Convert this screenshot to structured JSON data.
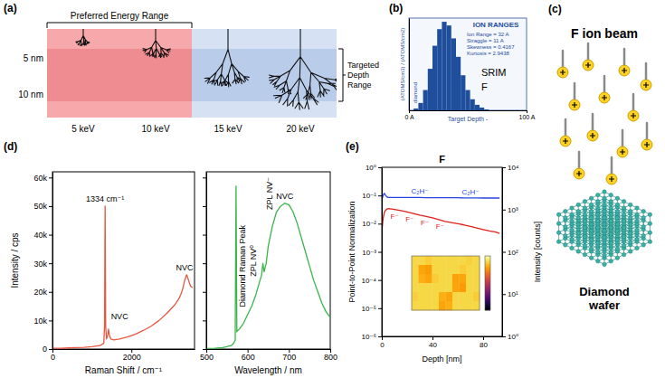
{
  "panel_labels": [
    "(a)",
    "(b)",
    "(c)",
    "(d)",
    "(e)"
  ],
  "diagram_a": {
    "range_label": "Preferred Energy Range",
    "depth_label": "Targeted Depth Range",
    "depths": [
      "5 nm",
      "10 nm"
    ],
    "energies": [
      "5 keV",
      "10 keV",
      "15 keV",
      "20 keV"
    ]
  },
  "diagram_c": {
    "beam_label": "F ion beam",
    "wafer_label": "Diamond wafer"
  },
  "chart_data": [
    {
      "type": "histogram",
      "title": "ION RANGES",
      "annotations": [
        "Ion Range = 32 A",
        "Straggle = 11 A",
        "Skewness = 0.4167",
        "Kurtosis = 2.9438"
      ],
      "labels": [
        "SRIM",
        "F"
      ],
      "target_label": "diamond",
      "xlabel": "Target Depth -",
      "ylabel": "(ATOMS/cm3) / (ATOMS/cm2)",
      "bins": [
        0,
        4,
        8,
        12,
        16,
        20,
        24,
        28,
        32,
        36,
        40,
        44,
        48,
        52,
        56,
        60,
        64,
        68,
        72
      ],
      "counts": [
        0,
        2,
        8,
        22,
        45,
        70,
        88,
        96,
        92,
        78,
        58,
        38,
        22,
        12,
        6,
        3,
        1,
        0
      ],
      "color": "#1f4e9c",
      "xlim": [
        0,
        100
      ],
      "xticks": [
        {
          "value": 0,
          "label": "0 A"
        },
        {
          "value": 100,
          "label": "100 A"
        }
      ],
      "ylim": [
        0,
        100
      ],
      "tick_labels": "x"
    },
    {
      "type": "line",
      "xlabel": "Raman Shift / cm⁻¹",
      "ylabel": "Intensity / cps",
      "x": [
        0,
        200,
        400,
        600,
        800,
        1000,
        1200,
        1300,
        1320,
        1334,
        1348,
        1370,
        1400,
        1420,
        1440,
        1480,
        1550,
        1700,
        1900,
        2100,
        2300,
        2500,
        2700,
        2900,
        3000,
        3100,
        3200,
        3250,
        3300,
        3350,
        3400,
        3450,
        3500,
        3550
      ],
      "series": [
        {
          "color": "#e8563f",
          "values": [
            300,
            300,
            400,
            500,
            600,
            800,
            1200,
            2000,
            8000,
            50000,
            8000,
            3500,
            5000,
            7000,
            5000,
            3500,
            3200,
            3500,
            4200,
            5200,
            6500,
            8000,
            10000,
            12500,
            14000,
            15500,
            17500,
            19000,
            21000,
            24000,
            26000,
            24000,
            22000,
            21500
          ]
        }
      ],
      "annotations": [
        {
          "text": "1334 cm⁻¹",
          "x": 1334,
          "y": 50000
        },
        {
          "text": "NVC",
          "x": 1700,
          "y": 9000
        },
        {
          "text": "NVC",
          "x": 3350,
          "y": 26000
        }
      ],
      "xlim": [
        0,
        3600
      ],
      "xticks": [
        0,
        2000
      ],
      "ylim": [
        0,
        62000
      ],
      "yticks": [
        0,
        {
          "value": 10000,
          "label": "10k"
        },
        {
          "value": 20000,
          "label": "20k"
        },
        {
          "value": 30000,
          "label": "30k"
        },
        {
          "value": 40000,
          "label": "40k"
        },
        {
          "value": 50000,
          "label": "50k"
        },
        {
          "value": 60000,
          "label": "60k"
        }
      ]
    },
    {
      "type": "line",
      "xlabel": "Wavelength / nm",
      "x": [
        500,
        520,
        540,
        560,
        565,
        570,
        572,
        574,
        576,
        580,
        590,
        600,
        610,
        620,
        630,
        634,
        637,
        640,
        645,
        650,
        660,
        670,
        680,
        690,
        700,
        710,
        720,
        730,
        740,
        750,
        760,
        770,
        780,
        790,
        800
      ],
      "series": [
        {
          "color": "#39b54a",
          "values": [
            200,
            300,
            500,
            1200,
            1800,
            3000,
            57000,
            6000,
            6500,
            7000,
            9000,
            12000,
            15000,
            19000,
            24000,
            26000,
            30000,
            27000,
            30000,
            36000,
            43000,
            48000,
            50000,
            51000,
            50500,
            48000,
            44000,
            39000,
            34000,
            29000,
            24000,
            20000,
            16000,
            13000,
            11000
          ]
        }
      ],
      "peak_labels": [
        {
          "text": "Diamond Raman Peak",
          "x": 572
        },
        {
          "text": "ZPL NV⁰",
          "x": 575
        },
        {
          "text": "ZPL NV⁻",
          "x": 637
        }
      ],
      "annotations": [
        {
          "text": "NVC",
          "x": 690,
          "y": 51000
        }
      ],
      "xlim": [
        500,
        800
      ],
      "xticks": [
        500,
        600,
        700,
        800
      ],
      "ylim": [
        0,
        62000
      ],
      "yticks": [
        0,
        10000,
        20000,
        30000,
        40000,
        50000,
        60000
      ],
      "tick_labels": "x"
    },
    {
      "type": "line",
      "title": "F",
      "xlabel": "Depth [nm]",
      "ylabel": "Point-to-Point Normalization",
      "y2label": "Intensity [counts]",
      "log": "y",
      "x": [
        0,
        1,
        2,
        3,
        4,
        5,
        6,
        8,
        10,
        12,
        15,
        20,
        25,
        30,
        35,
        40,
        45,
        50,
        55,
        60,
        65,
        70,
        75,
        80,
        85,
        90,
        93
      ],
      "series": [
        {
          "name": "C₂H⁻",
          "color": "#2546e0",
          "label_x": [
            30,
            70
          ],
          "values": [
            0.07,
            0.1,
            0.12,
            0.1,
            0.09,
            0.085,
            0.085,
            0.085,
            0.085,
            0.085,
            0.085,
            0.085,
            0.085,
            0.085,
            0.084,
            0.084,
            0.084,
            0.083,
            0.083,
            0.083,
            0.082,
            0.082,
            0.082,
            0.081,
            0.081,
            0.081,
            0.081
          ]
        },
        {
          "name": "F⁻",
          "color": "#e0201b",
          "label_x": [
            10,
            22,
            34,
            46
          ],
          "values": [
            0.005,
            0.015,
            0.025,
            0.03,
            0.033,
            0.034,
            0.034,
            0.033,
            0.032,
            0.031,
            0.029,
            0.026,
            0.023,
            0.02,
            0.018,
            0.016,
            0.014,
            0.012,
            0.011,
            0.01,
            0.009,
            0.008,
            0.007,
            0.0062,
            0.0055,
            0.005,
            0.0045
          ]
        }
      ],
      "xlim": [
        0,
        95
      ],
      "xticks": [
        0,
        40,
        80
      ],
      "ylim": [
        1e-06,
        1
      ],
      "yticks": [
        {
          "value": 1,
          "label": "10⁰"
        },
        {
          "value": 0.1,
          "label": "10⁻¹"
        },
        {
          "value": 0.01,
          "label": "10⁻²"
        },
        {
          "value": 0.001,
          "label": "10⁻³"
        },
        {
          "value": 0.0001,
          "label": "10⁻⁴"
        },
        {
          "value": 1e-05,
          "label": "10⁻⁵"
        },
        {
          "value": 1e-06,
          "label": "10⁻⁶"
        }
      ],
      "y2lim": [
        1,
        10000
      ],
      "y2ticks": [
        {
          "value": 1,
          "label": "10⁰"
        },
        {
          "value": 10,
          "label": "10¹"
        },
        {
          "value": 100,
          "label": "10²"
        },
        {
          "value": 1000,
          "label": "10³"
        },
        {
          "value": 10000,
          "label": "10⁴"
        }
      ]
    },
    {
      "type": "heatmap",
      "cells": [
        [
          0.9,
          0.9,
          0.88,
          0.9,
          0.9,
          0.9,
          0.9,
          0.9,
          0.89,
          0.9
        ],
        [
          0.9,
          0.8,
          0.78,
          0.9,
          0.9,
          0.9,
          0.9,
          0.88,
          0.9,
          0.9
        ],
        [
          0.9,
          0.82,
          0.8,
          0.88,
          0.9,
          0.9,
          0.79,
          0.8,
          0.9,
          0.9
        ],
        [
          0.9,
          0.9,
          0.9,
          0.9,
          0.9,
          0.9,
          0.8,
          0.78,
          0.9,
          0.9
        ],
        [
          0.89,
          0.9,
          0.9,
          0.9,
          0.82,
          0.8,
          0.9,
          0.9,
          0.9,
          0.88
        ],
        [
          0.9,
          0.9,
          0.9,
          0.9,
          0.8,
          0.82,
          0.9,
          0.9,
          0.9,
          0.9
        ]
      ],
      "colorbar_range": [
        0,
        1
      ],
      "tick_labels": false
    }
  ]
}
